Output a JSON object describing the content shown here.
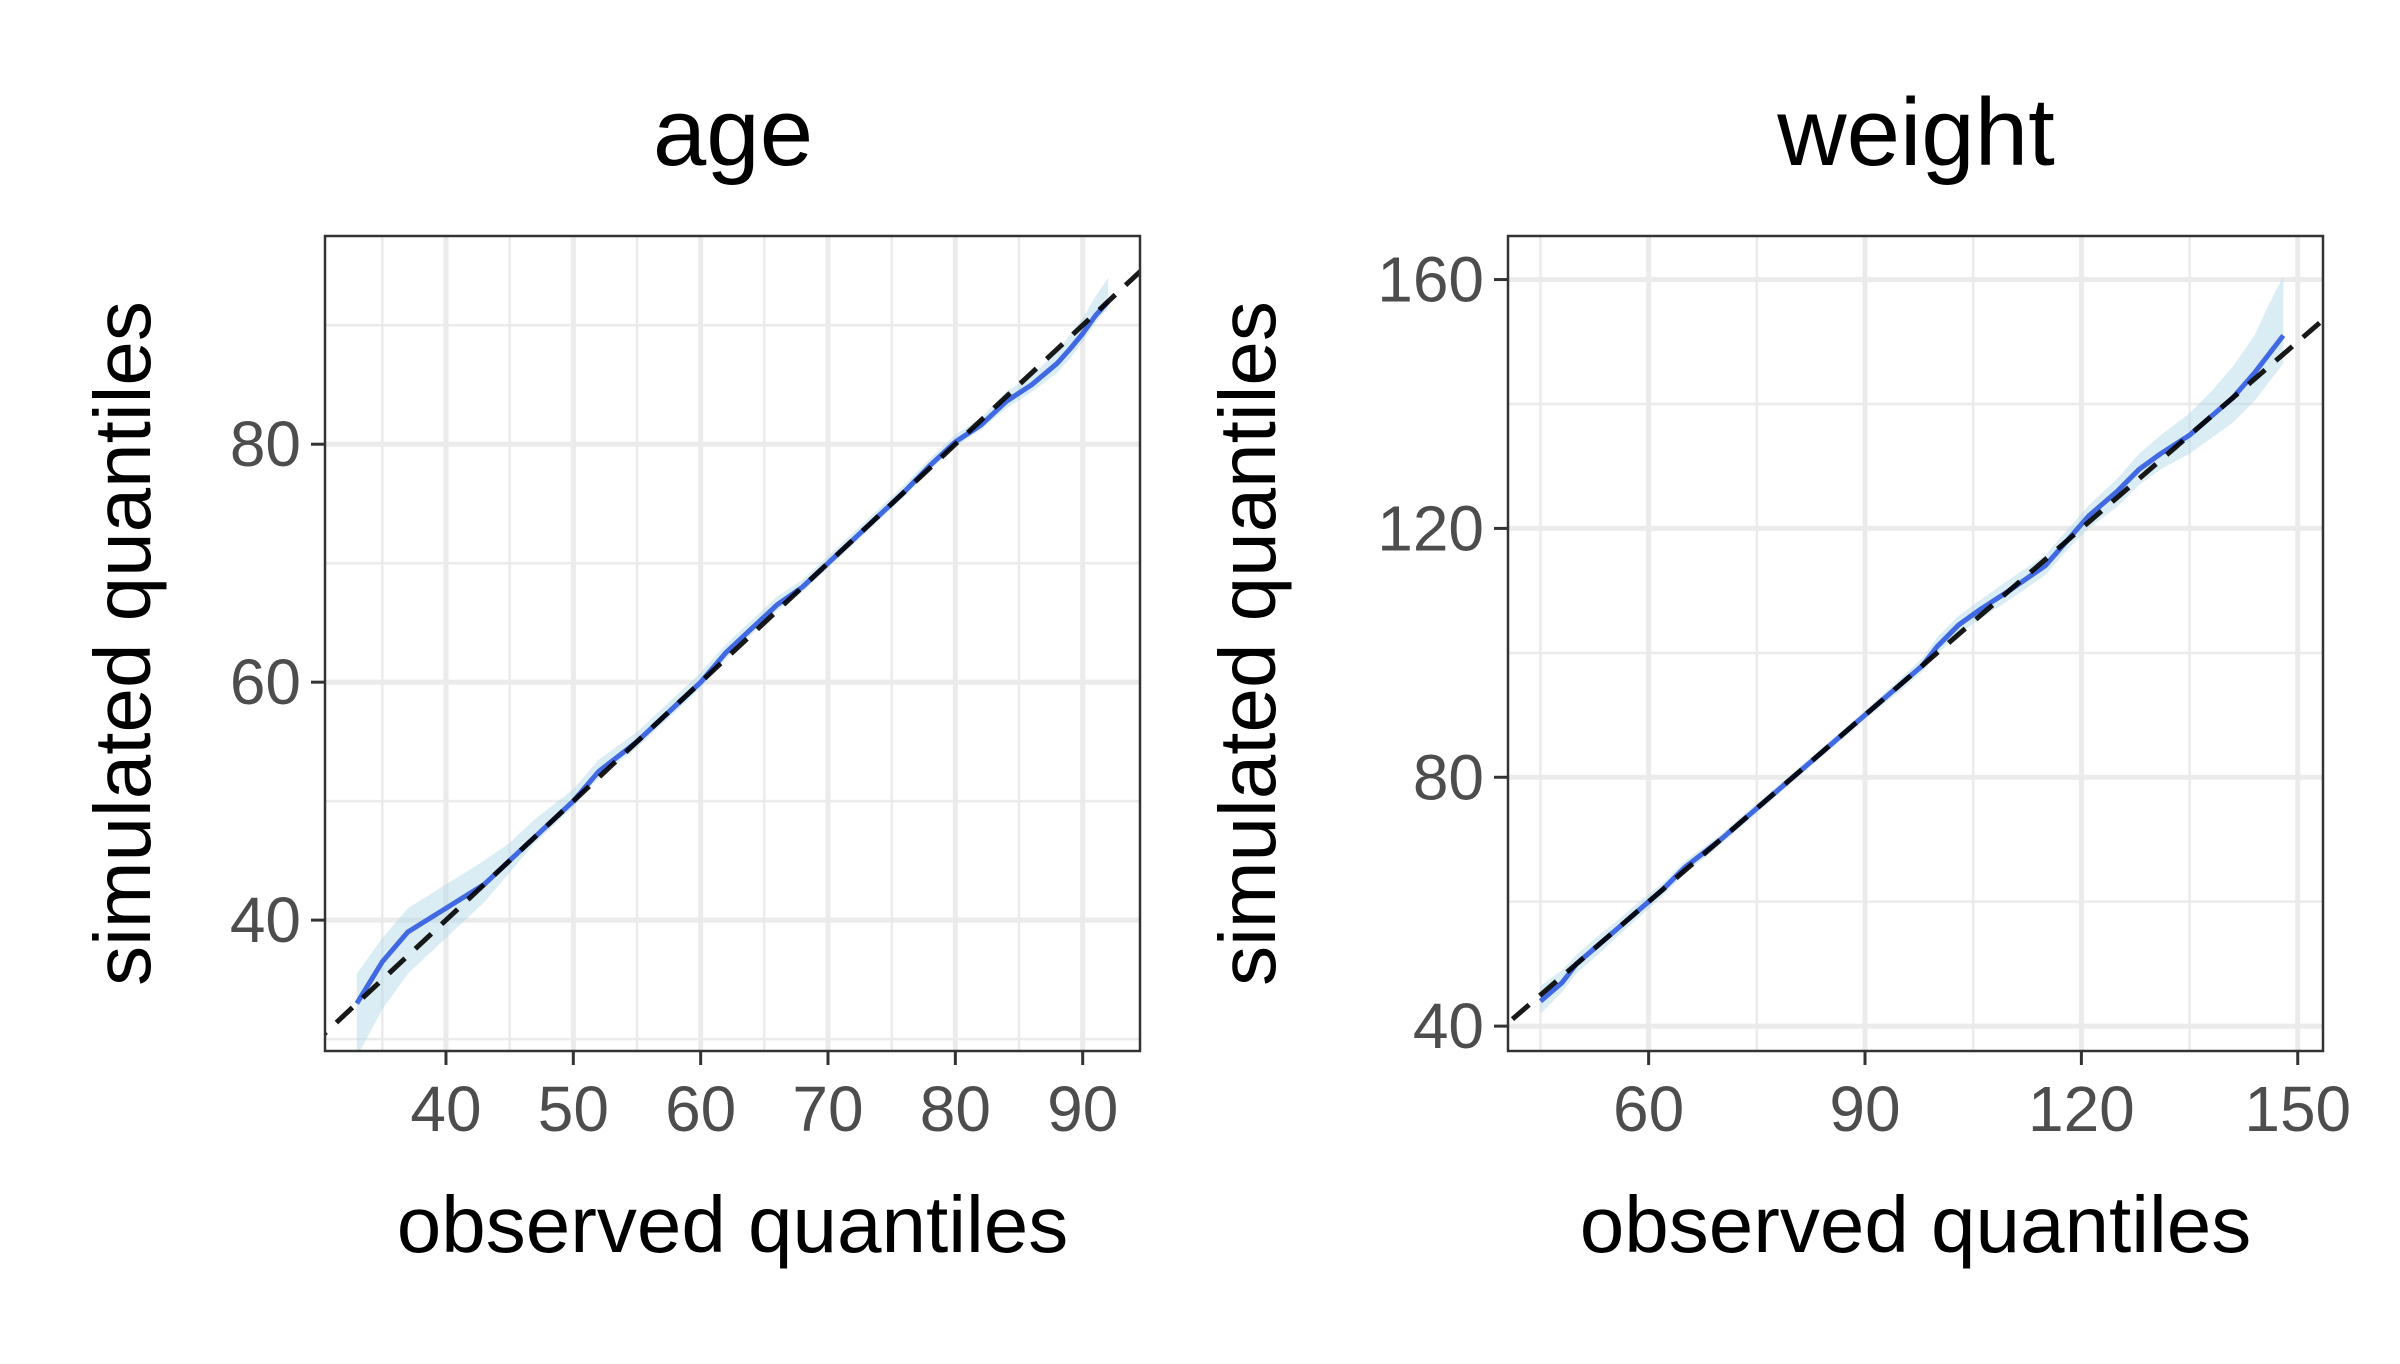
{
  "chart_data": [
    {
      "type": "line",
      "title": "age",
      "xlabel": "observed quantiles",
      "ylabel": "simulated quantiles",
      "xlim": [
        30.5,
        94.5
      ],
      "ylim": [
        29,
        97.5
      ],
      "x_ticks": [
        40,
        50,
        60,
        70,
        80,
        90
      ],
      "x_tick_labels": [
        "40",
        "50",
        "60",
        "70",
        "80",
        "90"
      ],
      "y_ticks": [
        40,
        60,
        80
      ],
      "y_tick_labels": [
        "40",
        "60",
        "80"
      ],
      "grid": true,
      "reference_line": {
        "style": "dashed",
        "slope": 1,
        "intercept": 0,
        "color": "#000000"
      },
      "series": [
        {
          "color": "#4169E1",
          "x": [
            33,
            35,
            37,
            40,
            43,
            45,
            47,
            50,
            52,
            55,
            58,
            60,
            62,
            64,
            66,
            68,
            70,
            72,
            74,
            76,
            78,
            80,
            82,
            84,
            86,
            88,
            89,
            90,
            91,
            92
          ],
          "y": [
            33,
            36.5,
            39,
            41,
            43,
            45,
            47,
            50,
            52.5,
            55,
            58,
            60,
            62.5,
            64.5,
            66.5,
            68,
            70,
            72,
            74,
            76,
            78.2,
            80.2,
            81.6,
            83.6,
            85,
            86.8,
            88,
            89.3,
            90.8,
            92
          ]
        }
      ],
      "ribbon": {
        "color": "#ADD8E6",
        "x": [
          33,
          35,
          37,
          40,
          43,
          45,
          47,
          50,
          52,
          55,
          58,
          60,
          62,
          64,
          66,
          68,
          70,
          72,
          74,
          76,
          78,
          80,
          82,
          84,
          86,
          88,
          89,
          90,
          91,
          92
        ],
        "lower": [
          28.5,
          32.5,
          35.5,
          38.5,
          41.5,
          44,
          46.5,
          49.5,
          52,
          54.5,
          57.5,
          59.5,
          62,
          64,
          66,
          67.6,
          69.6,
          71.6,
          73.6,
          75.6,
          77.8,
          79.8,
          81.2,
          83,
          84.4,
          86,
          87.2,
          88.6,
          90.2,
          91.5
        ],
        "upper": [
          35.5,
          38.5,
          41,
          43,
          45,
          46.5,
          48.5,
          51,
          53.5,
          55.8,
          58.8,
          60.8,
          63.2,
          65.2,
          67.2,
          68.6,
          70.6,
          72.6,
          74.6,
          76.6,
          78.8,
          80.8,
          82.2,
          84.4,
          85.8,
          87.8,
          89.2,
          90.6,
          92.4,
          94
        ]
      }
    },
    {
      "type": "line",
      "title": "weight",
      "xlabel": "observed quantiles",
      "ylabel": "simulated quantiles",
      "xlim": [
        40.5,
        153.5
      ],
      "ylim": [
        36,
        167
      ],
      "x_ticks": [
        60,
        90,
        120,
        150
      ],
      "x_tick_labels": [
        "60",
        "90",
        "120",
        "150"
      ],
      "y_ticks": [
        40,
        80,
        120,
        160
      ],
      "y_tick_labels": [
        "40",
        "80",
        "120",
        "160"
      ],
      "grid": true,
      "reference_line": {
        "style": "dashed",
        "slope": 1,
        "intercept": 0,
        "color": "#000000"
      },
      "series": [
        {
          "color": "#4169E1",
          "x": [
            45,
            48,
            50,
            53,
            56,
            59,
            62,
            65,
            70,
            75,
            80,
            85,
            90,
            95,
            98,
            100,
            103,
            106,
            110,
            115,
            118,
            121,
            125,
            128,
            131,
            135,
            138,
            141,
            144,
            146,
            148
          ],
          "y": [
            44,
            47,
            50,
            53,
            56,
            59,
            62,
            65.5,
            70,
            75,
            80,
            85,
            90,
            95,
            98,
            101,
            104.5,
            107,
            110,
            114,
            118,
            122,
            126,
            129.5,
            132,
            135,
            138,
            141,
            145,
            148,
            151
          ]
        }
      ],
      "ribbon": {
        "color": "#ADD8E6",
        "x": [
          45,
          48,
          50,
          53,
          56,
          59,
          62,
          65,
          70,
          75,
          80,
          85,
          90,
          95,
          98,
          100,
          103,
          106,
          110,
          115,
          118,
          121,
          125,
          128,
          131,
          135,
          138,
          141,
          144,
          146,
          148
        ],
        "lower": [
          42,
          45.5,
          48.5,
          51.5,
          54.8,
          57.8,
          61,
          64.5,
          69.2,
          74.2,
          79.3,
          84.3,
          89.3,
          94,
          97,
          99.8,
          103,
          105.5,
          108.5,
          112.5,
          116.5,
          120,
          123.5,
          127,
          129.5,
          132,
          134.5,
          137,
          140.5,
          143.5,
          146.5
        ],
        "upper": [
          46.5,
          49,
          51.5,
          54.5,
          57.3,
          60.3,
          63,
          66.5,
          70.8,
          75.8,
          80.7,
          85.7,
          90.7,
          96,
          99.2,
          102.5,
          106,
          108.5,
          111.8,
          115.7,
          119.7,
          123.7,
          128,
          132,
          135,
          138.5,
          142,
          146,
          151,
          156,
          160.5
        ]
      }
    }
  ]
}
